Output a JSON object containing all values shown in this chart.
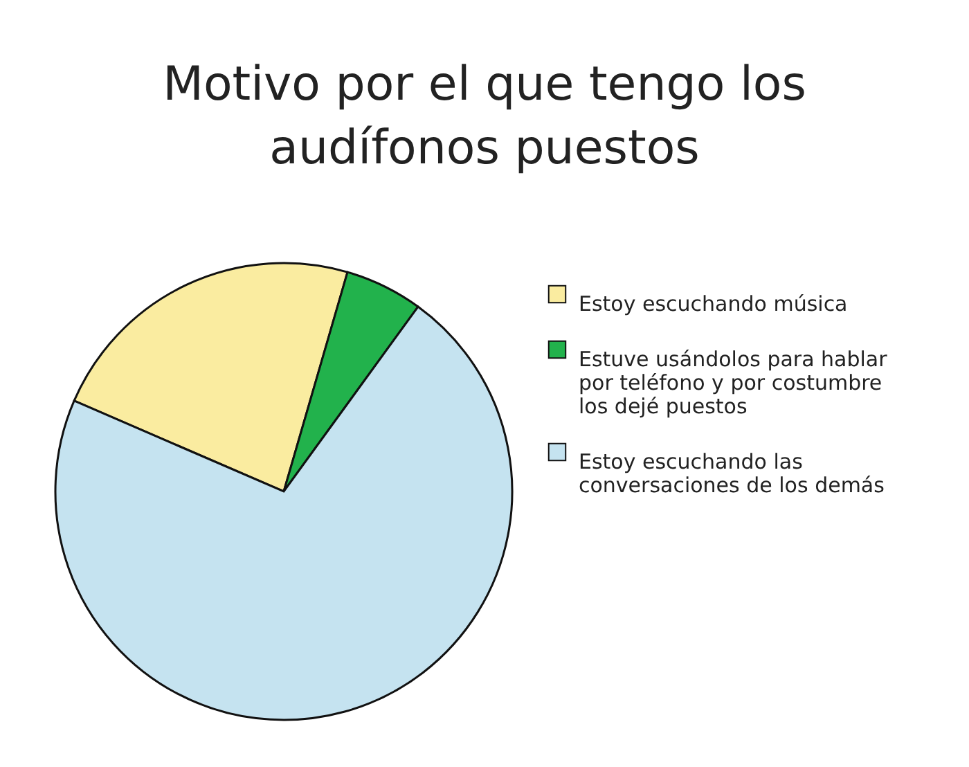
{
  "chart_data": {
    "type": "pie",
    "title": "Motivo por el que tengo los audífonos puestos",
    "categories": [
      "Estoy escuchando música",
      "Estuve usándolos para hablar por teléfono y por costumbre los dejé puestos",
      "Estoy escuchando las conversaciones de los demás"
    ],
    "values": [
      23,
      5.5,
      71.5
    ],
    "colors": [
      "#faeca0",
      "#22b24c",
      "#c5e3f0"
    ],
    "legend": "right"
  }
}
